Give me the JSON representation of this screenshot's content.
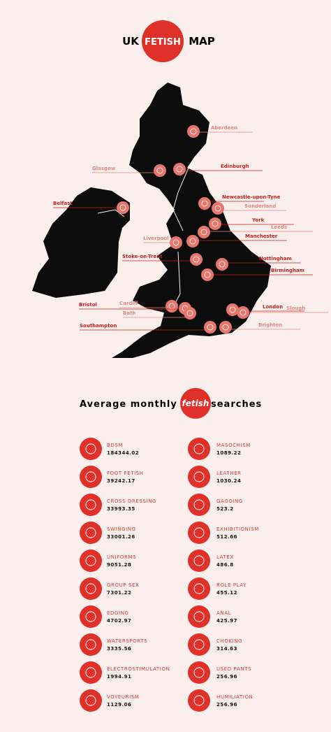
{
  "header": {
    "title_left": "UK",
    "title_highlight": "FETISH",
    "title_right": "MAP"
  },
  "map": {
    "cities": [
      {
        "label": "Aberdeen"
      },
      {
        "label": "Glasgow"
      },
      {
        "label": "Edinburgh"
      },
      {
        "label": "Belfast"
      },
      {
        "label": "Newcastle-upon-Tyne"
      },
      {
        "label": "Sunderland"
      },
      {
        "label": "York"
      },
      {
        "label": "Leeds"
      },
      {
        "label": "Manchester"
      },
      {
        "label": "Liverpool"
      },
      {
        "label": "Nottingham"
      },
      {
        "label": "Stoke-on-Trent"
      },
      {
        "label": "Birmingham"
      },
      {
        "label": "Cardiff"
      },
      {
        "label": "Bristol"
      },
      {
        "label": "Bath"
      },
      {
        "label": "London"
      },
      {
        "label": "Slough"
      },
      {
        "label": "Brighton"
      },
      {
        "label": "Southampton"
      }
    ]
  },
  "searches": {
    "title_left": "Average monthly",
    "title_highlight": "fetish",
    "title_right": "searches",
    "items": [
      {
        "name": "BDSM",
        "value": 184344.02
      },
      {
        "name": "FOOT FETISH",
        "value": 39242.17
      },
      {
        "name": "CROSS DRESSING",
        "value": 33993.35
      },
      {
        "name": "SWINGING",
        "value": 33001.26
      },
      {
        "name": "UNIFORMS",
        "value": 9051.28
      },
      {
        "name": "GROUP SEX",
        "value": 7301.22
      },
      {
        "name": "EDGING",
        "value": 4702.97
      },
      {
        "name": "WATERSPORTS",
        "value": 3335.56
      },
      {
        "name": "ELECTROSTIMULATION",
        "value": 1994.91
      },
      {
        "name": "VOYEURISM",
        "value": 1129.06
      },
      {
        "name": "MASOCHISM",
        "value": 1089.22
      },
      {
        "name": "LEATHER",
        "value": 1030.24
      },
      {
        "name": "GAGGING",
        "value": 523.2
      },
      {
        "name": "EXHIBITIONISM",
        "value": 512.66
      },
      {
        "name": "LATEX",
        "value": 486.8
      },
      {
        "name": "ROLE PLAY",
        "value": 455.12
      },
      {
        "name": "ANAL",
        "value": 425.97
      },
      {
        "name": "CHOKING",
        "value": 314.63
      },
      {
        "name": "USED PANTS",
        "value": 256.96
      },
      {
        "name": "HUMILIATION",
        "value": 256.96
      }
    ]
  }
}
